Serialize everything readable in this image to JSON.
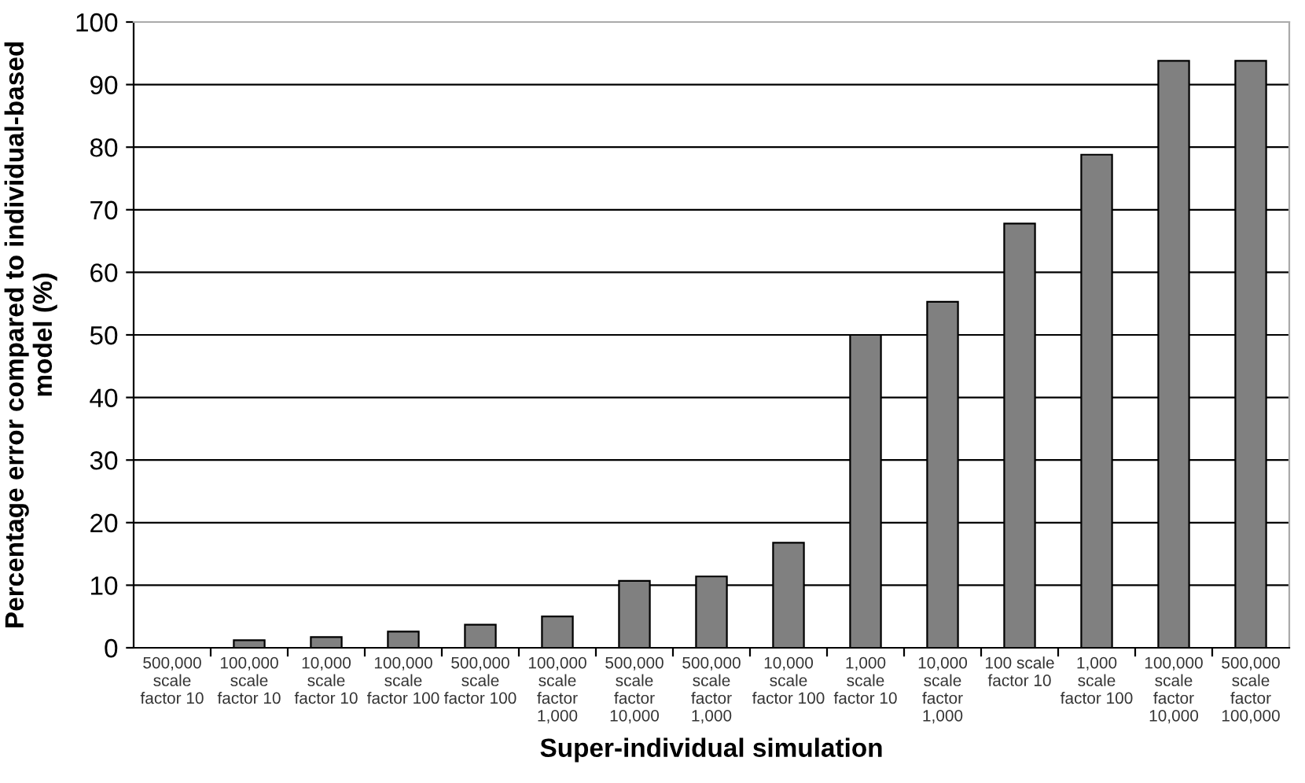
{
  "chart_data": {
    "type": "bar",
    "xlabel": "Super-individual simulation",
    "ylabel": "Percentage error compared to individual-based\nmodel (%)",
    "categories": [
      "500,000\nscale\nfactor 10",
      "100,000\nscale\nfactor 10",
      "10,000\nscale\nfactor 10",
      "100,000\nscale\nfactor 100",
      "500,000\nscale\nfactor 100",
      "100,000\nscale\nfactor\n1,000",
      "500,000\nscale\nfactor\n10,000",
      "500,000\nscale\nfactor\n1,000",
      "10,000\nscale\nfactor 100",
      "1,000\nscale\nfactor 10",
      "10,000\nscale\nfactor\n1,000",
      "100 scale\nfactor 10",
      "1,000\nscale\nfactor 100",
      "100,000\nscale\nfactor\n10,000",
      "500,000\nscale\nfactor\n100,000"
    ],
    "values": [
      0,
      1.2,
      1.7,
      2.6,
      3.7,
      5,
      10.7,
      11.4,
      16.8,
      50,
      55.3,
      67.8,
      78.8,
      93.8,
      93.8
    ],
    "color": "#808080",
    "ylim": [
      0,
      100
    ],
    "yticks": [
      0,
      10,
      20,
      30,
      40,
      50,
      60,
      70,
      80,
      90,
      100
    ],
    "grid": "y",
    "legend": false
  }
}
